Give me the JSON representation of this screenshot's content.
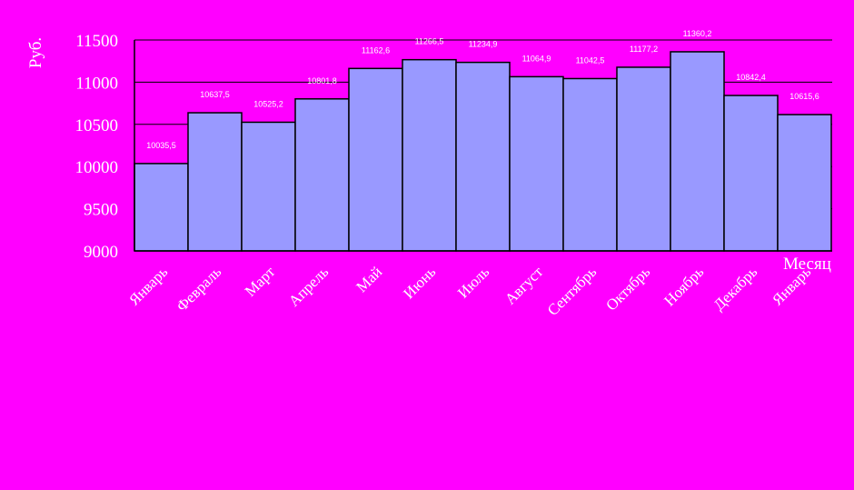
{
  "chart_data": {
    "type": "bar",
    "title": "",
    "ylabel": "Руб.",
    "xlabel": "Месяц",
    "ylim": [
      9000,
      11500
    ],
    "ytick_step": 500,
    "grid": true,
    "categories": [
      "Январь",
      "Февраль",
      "Март",
      "Апрель",
      "Май",
      "Июнь",
      "Июль",
      "Август",
      "Сентябрь",
      "Октябрь",
      "Ноябрь",
      "Декабрь",
      "Январь"
    ],
    "values": [
      10035.5,
      10637.5,
      10525.2,
      10801.8,
      11162.6,
      11266.5,
      11234.9,
      11064.9,
      11042.5,
      11177.2,
      11360.2,
      10842.4,
      10615.6
    ],
    "data_labels": [
      "10035,5",
      "10637,5",
      "10525,2",
      "10801,8",
      "11162,6",
      "11266,5",
      "11234,9",
      "11064,9",
      "11042,5",
      "11177,2",
      "11360,2",
      "10842,4",
      "10615,6"
    ],
    "colors": {
      "background": "#ff00ff",
      "bar_fill": "#9999ff",
      "bar_stroke": "#000000",
      "gridline": "#000000",
      "text": "#ffffff"
    }
  }
}
